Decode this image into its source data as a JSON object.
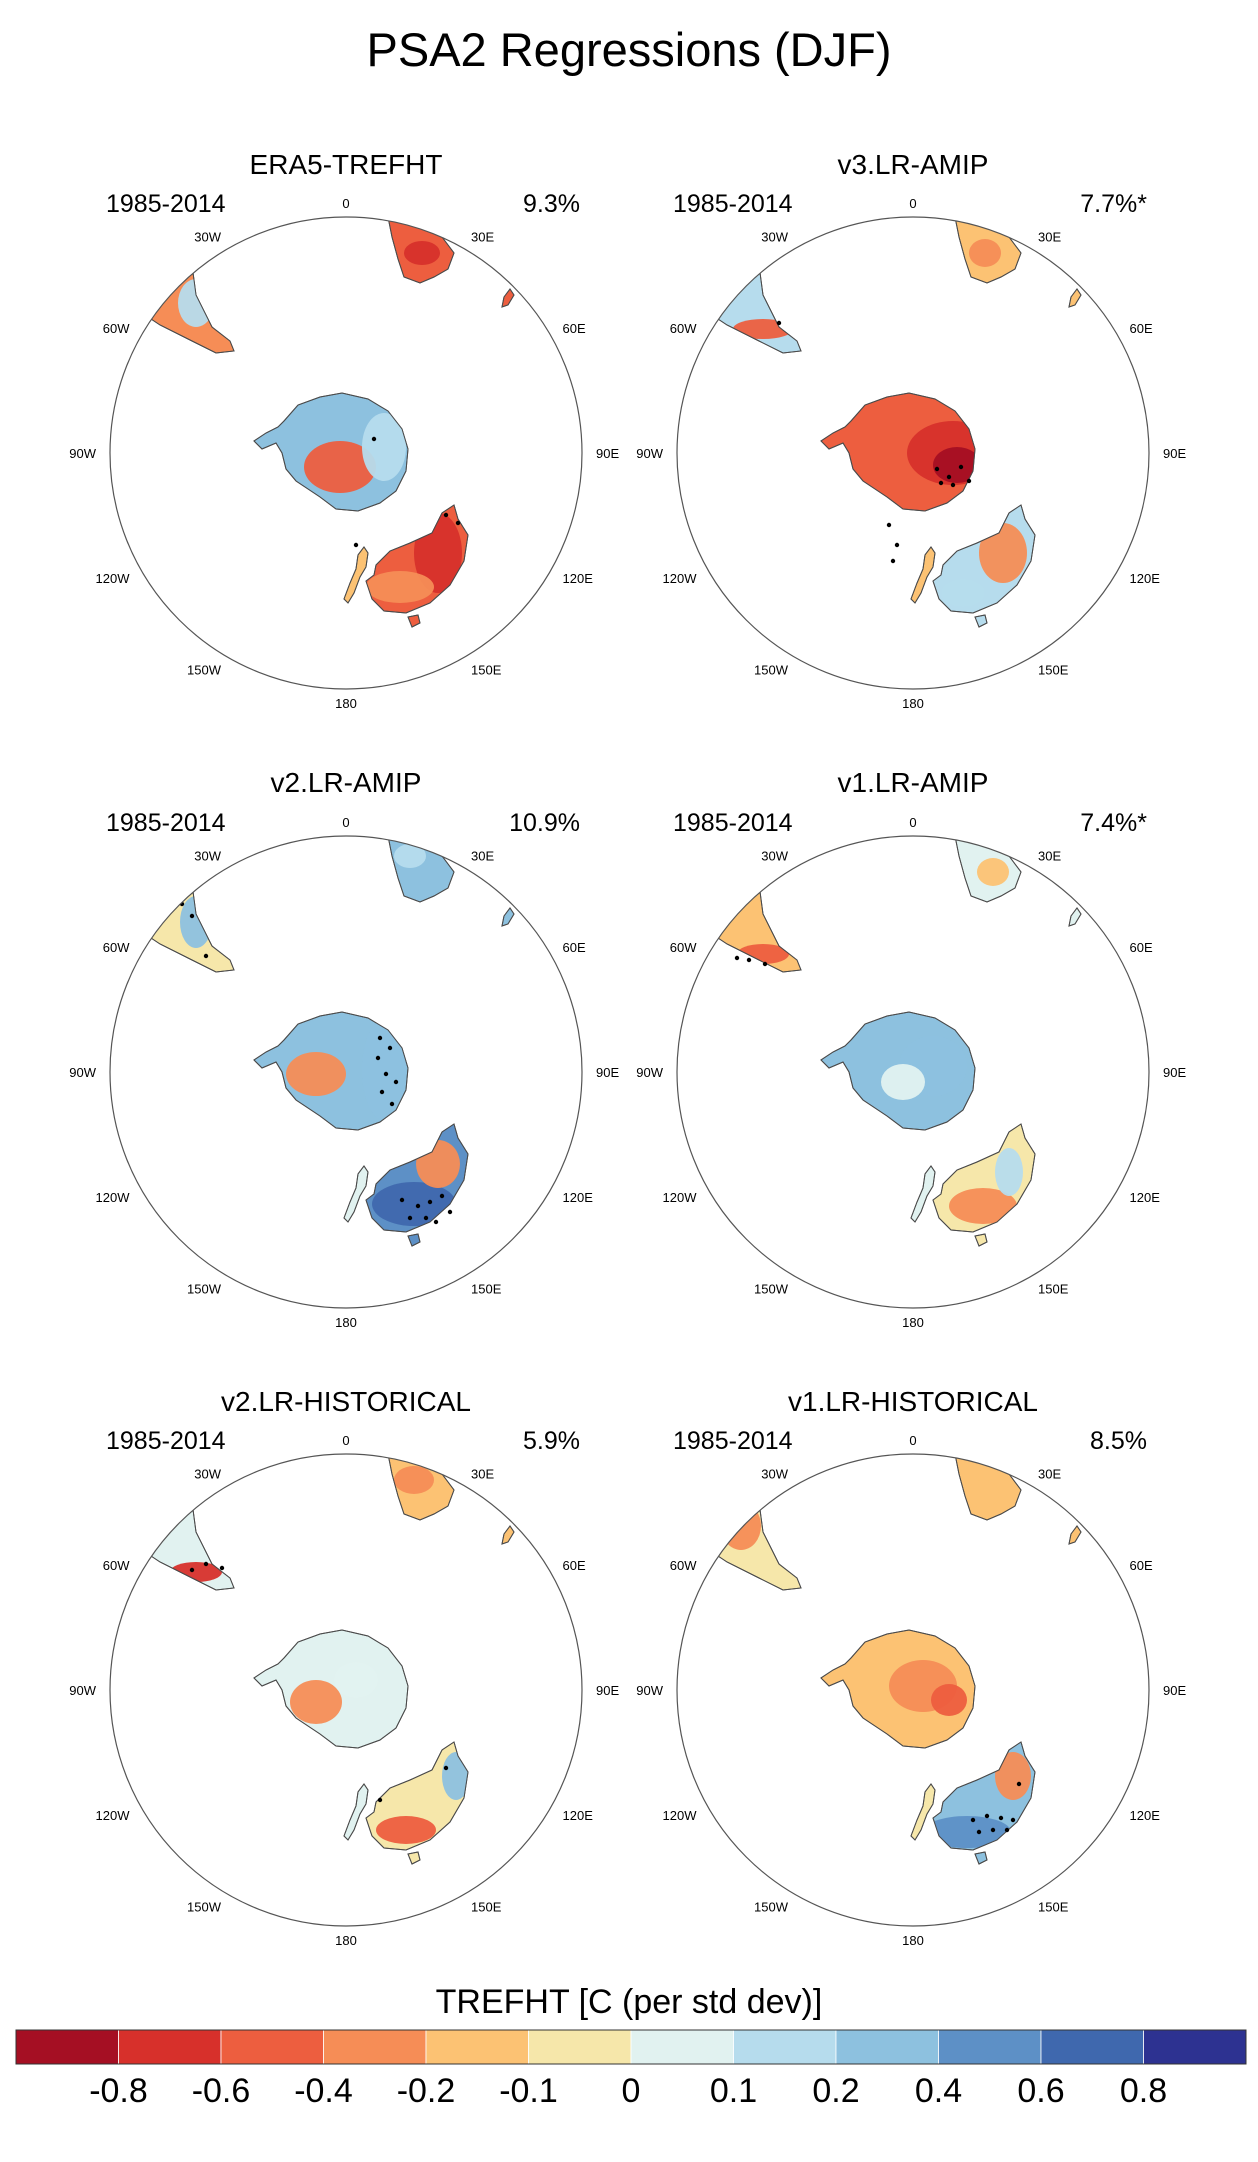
{
  "figure": {
    "title": "PSA2 Regressions (DJF)",
    "colorbar": {
      "title": "TREFHT [C (per std dev)]",
      "colors": [
        "#a50f23",
        "#d7302b",
        "#ed5e3f",
        "#f68d56",
        "#fcc273",
        "#f6e7aa",
        "#e1f2f0",
        "#b6dced",
        "#8dc1df",
        "#5d90c6",
        "#3f68ae",
        "#2d3291"
      ],
      "ticks": [
        "-0.8",
        "-0.6",
        "-0.4",
        "-0.2",
        "-0.1",
        "0",
        "0.1",
        "0.2",
        "0.4",
        "0.6",
        "0.8"
      ]
    },
    "longitude_labels": [
      "0",
      "30E",
      "60E",
      "90E",
      "120E",
      "150E",
      "180",
      "150W",
      "120W",
      "90W",
      "60W",
      "30W"
    ],
    "panels": [
      {
        "name": "ERA5-TREFHT",
        "period": "1985-2014",
        "variance": "9.3%",
        "fields": {
          "sam": "#f68d56",
          "safr": "#ed5e3f",
          "aus": "#ed5e3f",
          "ant": "#8dc1df",
          "nz": "#fcc273"
        },
        "anomalies": [
          {
            "region": "ant",
            "level": "-0.4"
          },
          {
            "region": "ant",
            "level": "0.2"
          },
          {
            "region": "aus",
            "level": "-0.6"
          },
          {
            "region": "aus",
            "level": "-0.2"
          },
          {
            "region": "sam",
            "level": "0.2"
          },
          {
            "region": "safr",
            "level": "-0.6"
          }
        ]
      },
      {
        "name": "v3.LR-AMIP",
        "period": "1985-2014",
        "variance": "7.7%*",
        "fields": {
          "sam": "#b6dced",
          "safr": "#fcc273",
          "aus": "#b6dced",
          "ant": "#ed5e3f",
          "nz": "#fcc273"
        },
        "anomalies": [
          {
            "region": "ant",
            "level": "-0.6"
          },
          {
            "region": "ant",
            "level": "-0.8"
          },
          {
            "region": "aus",
            "level": "-0.2"
          },
          {
            "region": "aus",
            "level": "0.2"
          },
          {
            "region": "sam",
            "level": "-0.4"
          },
          {
            "region": "safr",
            "level": "-0.2"
          }
        ]
      },
      {
        "name": "v2.LR-AMIP",
        "period": "1985-2014",
        "variance": "10.9%",
        "fields": {
          "sam": "#f6e7aa",
          "safr": "#8dc1df",
          "aus": "#5d90c6",
          "ant": "#8dc1df",
          "nz": "#e1f2f0"
        },
        "anomalies": [
          {
            "region": "ant",
            "level": "0.4"
          },
          {
            "region": "ant",
            "level": "-0.2"
          },
          {
            "region": "aus",
            "level": "0.8"
          },
          {
            "region": "aus",
            "level": "-0.2"
          },
          {
            "region": "sam",
            "level": "0.4"
          },
          {
            "region": "safr",
            "level": "0.2"
          }
        ]
      },
      {
        "name": "v1.LR-AMIP",
        "period": "1985-2014",
        "variance": "7.4%*",
        "fields": {
          "sam": "#fcc273",
          "safr": "#e1f2f0",
          "aus": "#f6e7aa",
          "ant": "#8dc1df",
          "nz": "#e1f2f0"
        },
        "anomalies": [
          {
            "region": "ant",
            "level": "0.4"
          },
          {
            "region": "ant",
            "level": "0.1"
          },
          {
            "region": "aus",
            "level": "-0.2"
          },
          {
            "region": "aus",
            "level": "0.2"
          },
          {
            "region": "sam",
            "level": "-0.4"
          },
          {
            "region": "safr",
            "level": "-0.1"
          }
        ]
      },
      {
        "name": "v2.LR-HISTORICAL",
        "period": "1985-2014",
        "variance": "5.9%",
        "fields": {
          "sam": "#e1f2f0",
          "safr": "#fcc273",
          "aus": "#f6e7aa",
          "ant": "#e1f2f0",
          "nz": "#e1f2f0"
        },
        "anomalies": [
          {
            "region": "ant",
            "level": "-0.2"
          },
          {
            "region": "ant",
            "level": "0.1"
          },
          {
            "region": "aus",
            "level": "0.4"
          },
          {
            "region": "aus",
            "level": "-0.4"
          },
          {
            "region": "sam",
            "level": "-0.6"
          },
          {
            "region": "safr",
            "level": "-0.2"
          }
        ]
      },
      {
        "name": "v1.LR-HISTORICAL",
        "period": "1985-2014",
        "variance": "8.5%",
        "fields": {
          "sam": "#f6e7aa",
          "safr": "#fcc273",
          "aus": "#8dc1df",
          "ant": "#fcc273",
          "nz": "#f6e7aa"
        },
        "anomalies": [
          {
            "region": "ant",
            "level": "-0.2"
          },
          {
            "region": "ant",
            "level": "-0.4"
          },
          {
            "region": "aus",
            "level": "0.6"
          },
          {
            "region": "aus",
            "level": "-0.2"
          },
          {
            "region": "sam",
            "level": "-0.2"
          },
          {
            "region": "safr",
            "level": "-0.1"
          }
        ]
      }
    ]
  }
}
